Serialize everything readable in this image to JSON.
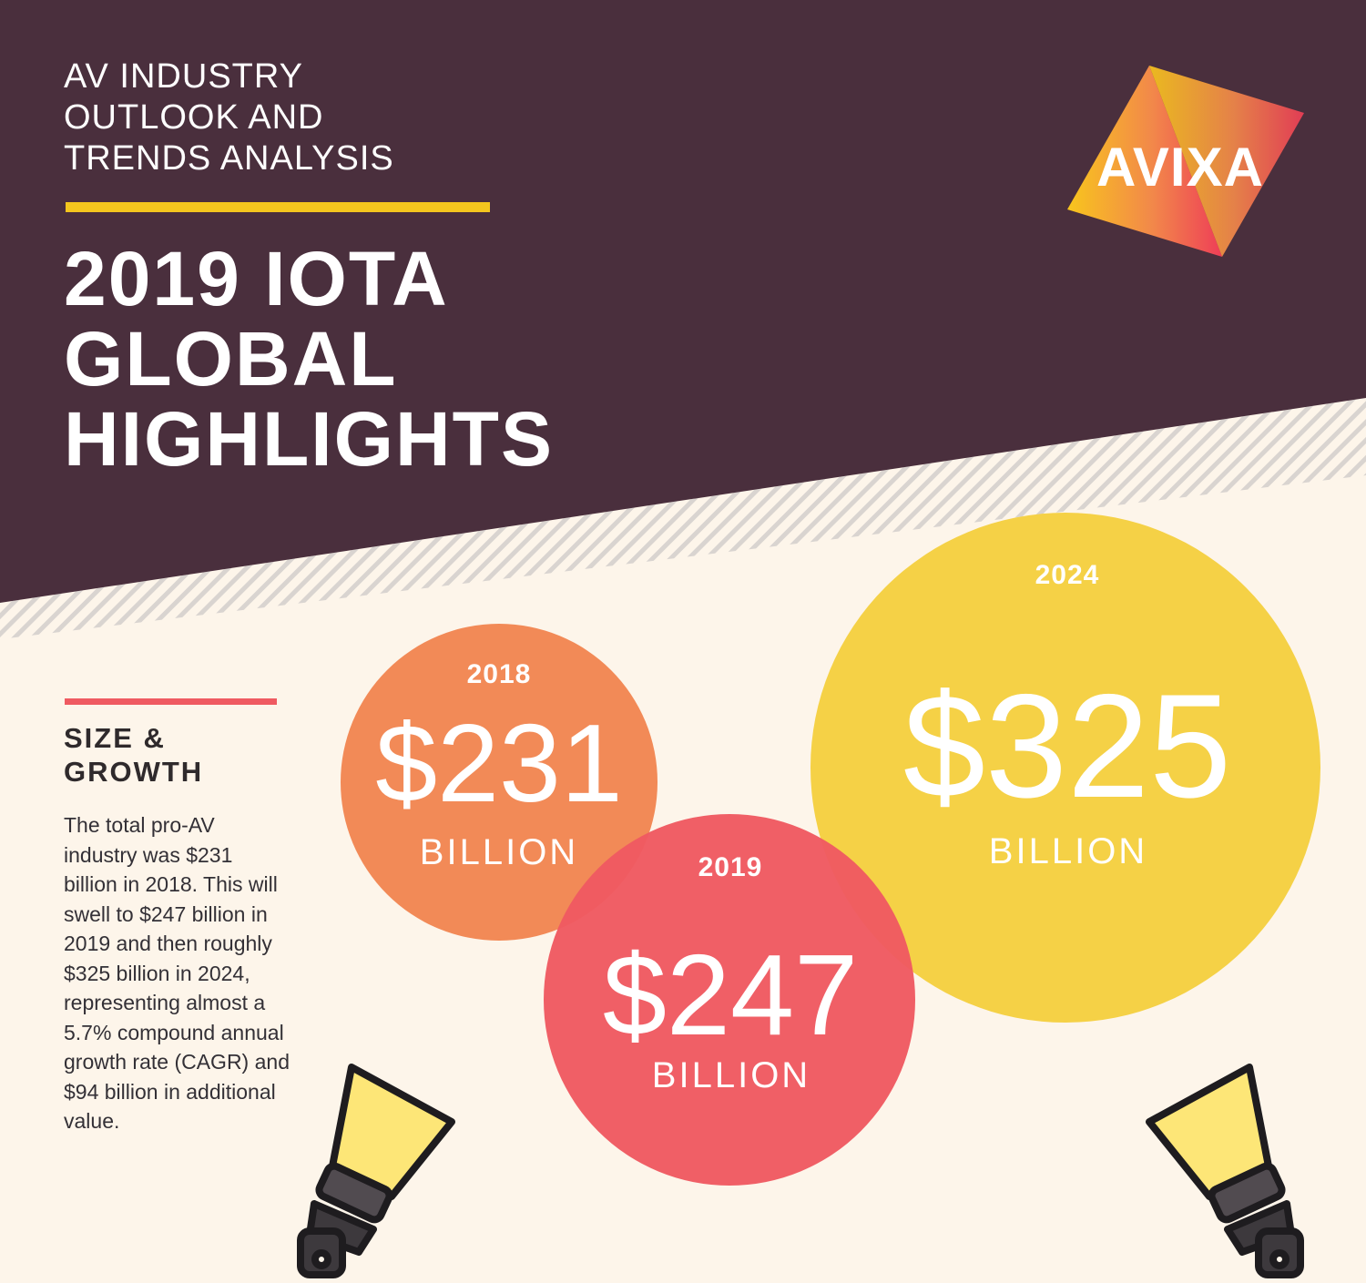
{
  "header": {
    "subtitle": "AV INDUSTRY\nOUTLOOK AND\nTRENDS ANALYSIS",
    "title": "2019 IOTA\nGLOBAL\nHIGHLIGHTS",
    "logo_text": "AVIXA"
  },
  "section": {
    "title": "SIZE &\nGROWTH",
    "body": "The total pro-AV industry was $231 billion in 2018. This will swell to $247 billion in 2019 and then roughly $325 billion in 2024, representing almost a 5.7% compound annual growth rate (CAGR) and $94 billion in additional value."
  },
  "bubbles": [
    {
      "year": "2018",
      "amount": "$231",
      "unit": "BILLION",
      "value": 231,
      "color": "#f28a57"
    },
    {
      "year": "2019",
      "amount": "$247",
      "unit": "BILLION",
      "value": 247,
      "color": "#ef5a61"
    },
    {
      "year": "2024",
      "amount": "$325",
      "unit": "BILLION",
      "value": 325,
      "color": "#f5d146"
    }
  ],
  "colors": {
    "header_bg": "#4a2f3d",
    "page_bg": "#fdf5ea",
    "accent_yellow": "#f4c61e",
    "accent_red": "#ef5a61"
  },
  "icons": [
    "spotlight-left-icon",
    "spotlight-right-icon"
  ]
}
